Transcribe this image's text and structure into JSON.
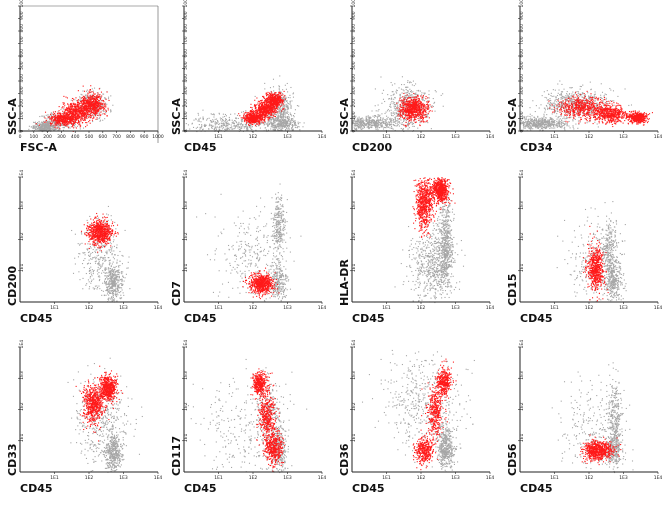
{
  "colors": {
    "gated": "#ff1a1a",
    "background": "#a6a6a6",
    "axis": "#222222"
  },
  "chart_data": [
    {
      "type": "scatter",
      "xlabel": "FSC-A",
      "ylabel": "SSC-A",
      "xscale": "linear",
      "yscale": "linear",
      "xlim": [
        0,
        1000
      ],
      "ylim": [
        0,
        1000
      ],
      "xticks": [
        "0",
        "100",
        "200",
        "300",
        "400",
        "500",
        "600",
        "700",
        "800",
        "900",
        "1000"
      ],
      "yticks": [
        "0",
        "100",
        "200",
        "300",
        "400",
        "500",
        "600",
        "700",
        "800",
        "900",
        "1000"
      ],
      "series": [
        {
          "color": "#a6a6a6",
          "points": 900,
          "clusters": [
            {
              "x": 170,
              "y": 35,
              "sx": 40,
              "sy": 20
            },
            {
              "x": 280,
              "y": 85,
              "sx": 70,
              "sy": 35
            },
            {
              "x": 520,
              "y": 210,
              "sx": 55,
              "sy": 55
            }
          ]
        },
        {
          "color": "#ff1a1a",
          "points": 1400,
          "clusters": [
            {
              "x": 320,
              "y": 100,
              "sx": 55,
              "sy": 30
            },
            {
              "x": 420,
              "y": 160,
              "sx": 55,
              "sy": 40
            },
            {
              "x": 520,
              "y": 215,
              "sx": 45,
              "sy": 45
            }
          ]
        }
      ]
    },
    {
      "type": "scatter",
      "xlabel": "CD45",
      "ylabel": "SSC-A",
      "xscale": "log",
      "yscale": "linear",
      "xlim": [
        1,
        10000
      ],
      "ylim": [
        0,
        1000
      ],
      "xticks": [
        "1E1",
        "1E2",
        "1E3",
        "1E4"
      ],
      "yticks": [
        "0",
        "100",
        "200",
        "300",
        "400",
        "500",
        "600",
        "700",
        "800",
        "900",
        "1000"
      ],
      "series": [
        {
          "color": "#a6a6a6",
          "points": 1100,
          "clusters": [
            {
              "x": 600,
              "y": 60,
              "sx": 0.25,
              "sy": 35
            },
            {
              "x": 550,
              "y": 200,
              "sx": 0.2,
              "sy": 70
            },
            {
              "x": 20,
              "y": 60,
              "sx": 0.6,
              "sy": 40
            }
          ]
        },
        {
          "color": "#ff1a1a",
          "points": 1300,
          "clusters": [
            {
              "x": 100,
              "y": 110,
              "sx": 0.15,
              "sy": 25
            },
            {
              "x": 220,
              "y": 180,
              "sx": 0.15,
              "sy": 35
            },
            {
              "x": 400,
              "y": 250,
              "sx": 0.12,
              "sy": 30
            }
          ]
        }
      ]
    },
    {
      "type": "scatter",
      "xlabel": "CD200",
      "ylabel": "SSC-A",
      "xscale": "log",
      "yscale": "linear",
      "xlim": [
        1,
        10000
      ],
      "ylim": [
        0,
        1000
      ],
      "xticks": [
        "1E1",
        "1E2",
        "1E3",
        "1E4"
      ],
      "yticks": [
        "0",
        "100",
        "200",
        "300",
        "400",
        "500",
        "600",
        "700",
        "800",
        "900",
        "1000"
      ],
      "series": [
        {
          "color": "#a6a6a6",
          "points": 1000,
          "clusters": [
            {
              "x": 3,
              "y": 70,
              "sx": 0.4,
              "sy": 25
            },
            {
              "x": 40,
              "y": 200,
              "sx": 0.35,
              "sy": 90
            }
          ]
        },
        {
          "color": "#ff1a1a",
          "points": 700,
          "clusters": [
            {
              "x": 60,
              "y": 180,
              "sx": 0.2,
              "sy": 45
            }
          ]
        }
      ]
    },
    {
      "type": "scatter",
      "xlabel": "CD34",
      "ylabel": "SSC-A",
      "xscale": "log",
      "yscale": "linear",
      "xlim": [
        1,
        10000
      ],
      "ylim": [
        0,
        1000
      ],
      "xticks": [
        "1E1",
        "1E2",
        "1E3",
        "1E4"
      ],
      "yticks": [
        "0",
        "100",
        "200",
        "300",
        "400",
        "500",
        "600",
        "700",
        "800",
        "900",
        "1000"
      ],
      "series": [
        {
          "color": "#a6a6a6",
          "points": 1200,
          "clusters": [
            {
              "x": 3,
              "y": 65,
              "sx": 0.5,
              "sy": 25
            },
            {
              "x": 40,
              "y": 220,
              "sx": 0.5,
              "sy": 60
            }
          ]
        },
        {
          "color": "#ff1a1a",
          "points": 1500,
          "clusters": [
            {
              "x": 60,
              "y": 190,
              "sx": 0.35,
              "sy": 45
            },
            {
              "x": 2500,
              "y": 110,
              "sx": 0.12,
              "sy": 20
            },
            {
              "x": 400,
              "y": 140,
              "sx": 0.25,
              "sy": 35
            }
          ]
        }
      ]
    },
    {
      "type": "scatter",
      "xlabel": "CD45",
      "ylabel": "CD200",
      "xscale": "log",
      "yscale": "log",
      "xlim": [
        1,
        10000
      ],
      "ylim": [
        1,
        10000
      ],
      "xticks": [
        "1E1",
        "1E2",
        "1E3",
        "1E4"
      ],
      "yticks": [
        "1E1",
        "1E2",
        "1E3",
        "1E4"
      ],
      "series": [
        {
          "color": "#a6a6a6",
          "points": 700,
          "clusters": [
            {
              "x": 500,
              "y": 4,
              "sx": 0.12,
              "sy": 0.3
            },
            {
              "x": 200,
              "y": 30,
              "sx": 0.3,
              "sy": 0.6
            }
          ]
        },
        {
          "color": "#ff1a1a",
          "points": 700,
          "clusters": [
            {
              "x": 200,
              "y": 170,
              "sx": 0.17,
              "sy": 0.2
            }
          ]
        }
      ]
    },
    {
      "type": "scatter",
      "xlabel": "CD45",
      "ylabel": "CD7",
      "xscale": "log",
      "yscale": "log",
      "xlim": [
        1,
        10000
      ],
      "ylim": [
        1,
        10000
      ],
      "xticks": [
        "1E1",
        "1E2",
        "1E3",
        "1E4"
      ],
      "yticks": [
        "1E1",
        "1E2",
        "1E3",
        "1E4"
      ],
      "series": [
        {
          "color": "#a6a6a6",
          "points": 800,
          "clusters": [
            {
              "x": 550,
              "y": 300,
              "sx": 0.1,
              "sy": 0.45
            },
            {
              "x": 500,
              "y": 5,
              "sx": 0.12,
              "sy": 0.3
            },
            {
              "x": 80,
              "y": 30,
              "sx": 0.5,
              "sy": 0.7
            }
          ]
        },
        {
          "color": "#ff1a1a",
          "points": 700,
          "clusters": [
            {
              "x": 170,
              "y": 4,
              "sx": 0.17,
              "sy": 0.15
            }
          ]
        }
      ]
    },
    {
      "type": "scatter",
      "xlabel": "CD45",
      "ylabel": "HLA-DR",
      "xscale": "log",
      "yscale": "log",
      "xlim": [
        1,
        10000
      ],
      "ylim": [
        1,
        10000
      ],
      "xticks": [
        "1E1",
        "1E2",
        "1E3",
        "1E4"
      ],
      "yticks": [
        "1E1",
        "1E2",
        "1E3",
        "1E4"
      ],
      "series": [
        {
          "color": "#a6a6a6",
          "points": 1100,
          "clusters": [
            {
              "x": 500,
              "y": 60,
              "sx": 0.1,
              "sy": 0.7
            },
            {
              "x": 200,
              "y": 15,
              "sx": 0.3,
              "sy": 0.6
            }
          ]
        },
        {
          "color": "#ff1a1a",
          "points": 1300,
          "clusters": [
            {
              "x": 120,
              "y": 1500,
              "sx": 0.12,
              "sy": 0.4
            },
            {
              "x": 350,
              "y": 4000,
              "sx": 0.12,
              "sy": 0.2
            }
          ]
        }
      ]
    },
    {
      "type": "scatter",
      "xlabel": "CD45",
      "ylabel": "CD15",
      "xscale": "log",
      "yscale": "log",
      "xlim": [
        1,
        10000
      ],
      "ylim": [
        1,
        10000
      ],
      "xticks": [
        "1E1",
        "1E2",
        "1E3",
        "1E4"
      ],
      "yticks": [
        "1E1",
        "1E2",
        "1E3",
        "1E4"
      ],
      "series": [
        {
          "color": "#a6a6a6",
          "points": 800,
          "clusters": [
            {
              "x": 500,
              "y": 5,
              "sx": 0.12,
              "sy": 0.3
            },
            {
              "x": 400,
              "y": 40,
              "sx": 0.1,
              "sy": 0.55
            },
            {
              "x": 150,
              "y": 20,
              "sx": 0.4,
              "sy": 0.7
            }
          ]
        },
        {
          "color": "#ff1a1a",
          "points": 600,
          "clusters": [
            {
              "x": 150,
              "y": 12,
              "sx": 0.12,
              "sy": 0.35
            }
          ]
        }
      ]
    },
    {
      "type": "scatter",
      "xlabel": "CD45",
      "ylabel": "CD33",
      "xscale": "log",
      "yscale": "log",
      "xlim": [
        1,
        10000
      ],
      "ylim": [
        1,
        10000
      ],
      "xticks": [
        "1E1",
        "1E2",
        "1E3",
        "1E4"
      ],
      "yticks": [
        "1E1",
        "1E2",
        "1E3",
        "1E4"
      ],
      "series": [
        {
          "color": "#a6a6a6",
          "points": 800,
          "clusters": [
            {
              "x": 500,
              "y": 4,
              "sx": 0.12,
              "sy": 0.3
            },
            {
              "x": 200,
              "y": 40,
              "sx": 0.4,
              "sy": 0.7
            }
          ]
        },
        {
          "color": "#ff1a1a",
          "points": 1200,
          "clusters": [
            {
              "x": 130,
              "y": 150,
              "sx": 0.15,
              "sy": 0.3
            },
            {
              "x": 350,
              "y": 500,
              "sx": 0.12,
              "sy": 0.2
            }
          ]
        }
      ]
    },
    {
      "type": "scatter",
      "xlabel": "CD45",
      "ylabel": "CD117",
      "xscale": "log",
      "yscale": "log",
      "xlim": [
        1,
        10000
      ],
      "ylim": [
        1,
        10000
      ],
      "xticks": [
        "1E1",
        "1E2",
        "1E3",
        "1E4"
      ],
      "yticks": [
        "1E1",
        "1E2",
        "1E3",
        "1E4"
      ],
      "series": [
        {
          "color": "#a6a6a6",
          "points": 800,
          "clusters": [
            {
              "x": 550,
              "y": 5,
              "sx": 0.12,
              "sy": 0.35
            },
            {
              "x": 300,
              "y": 60,
              "sx": 0.2,
              "sy": 0.55
            },
            {
              "x": 50,
              "y": 30,
              "sx": 0.6,
              "sy": 0.8
            }
          ]
        },
        {
          "color": "#ff1a1a",
          "points": 1200,
          "clusters": [
            {
              "x": 150,
              "y": 700,
              "sx": 0.1,
              "sy": 0.18
            },
            {
              "x": 250,
              "y": 60,
              "sx": 0.12,
              "sy": 0.4
            },
            {
              "x": 400,
              "y": 6,
              "sx": 0.12,
              "sy": 0.25
            }
          ]
        }
      ]
    },
    {
      "type": "scatter",
      "xlabel": "CD45",
      "ylabel": "CD36",
      "xscale": "log",
      "yscale": "log",
      "xlim": [
        1,
        10000
      ],
      "ylim": [
        1,
        10000
      ],
      "xticks": [
        "1E1",
        "1E2",
        "1E3",
        "1E4"
      ],
      "yticks": [
        "1E1",
        "1E2",
        "1E3",
        "1E4"
      ],
      "series": [
        {
          "color": "#a6a6a6",
          "points": 900,
          "clusters": [
            {
              "x": 500,
              "y": 6,
              "sx": 0.12,
              "sy": 0.35
            },
            {
              "x": 100,
              "y": 200,
              "sx": 0.6,
              "sy": 0.9
            }
          ]
        },
        {
          "color": "#ff1a1a",
          "points": 1100,
          "clusters": [
            {
              "x": 120,
              "y": 5,
              "sx": 0.12,
              "sy": 0.2
            },
            {
              "x": 250,
              "y": 80,
              "sx": 0.12,
              "sy": 0.4
            },
            {
              "x": 450,
              "y": 800,
              "sx": 0.1,
              "sy": 0.22
            }
          ]
        }
      ]
    },
    {
      "type": "scatter",
      "xlabel": "CD45",
      "ylabel": "CD56",
      "xscale": "log",
      "yscale": "log",
      "xlim": [
        1,
        10000
      ],
      "ylim": [
        1,
        10000
      ],
      "xticks": [
        "1E1",
        "1E2",
        "1E3",
        "1E4"
      ],
      "yticks": [
        "1E1",
        "1E2",
        "1E3",
        "1E4"
      ],
      "series": [
        {
          "color": "#a6a6a6",
          "points": 800,
          "clusters": [
            {
              "x": 550,
              "y": 60,
              "sx": 0.1,
              "sy": 0.6
            },
            {
              "x": 500,
              "y": 5,
              "sx": 0.12,
              "sy": 0.25
            },
            {
              "x": 150,
              "y": 20,
              "sx": 0.5,
              "sy": 0.8
            }
          ]
        },
        {
          "color": "#ff1a1a",
          "points": 700,
          "clusters": [
            {
              "x": 180,
              "y": 5,
              "sx": 0.2,
              "sy": 0.15
            }
          ]
        }
      ]
    }
  ]
}
